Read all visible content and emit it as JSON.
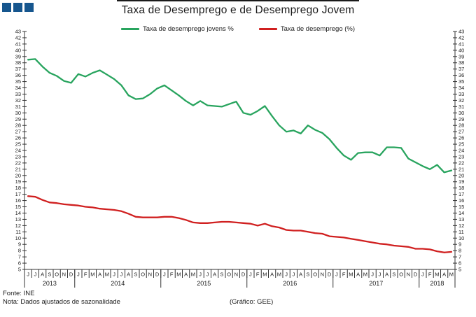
{
  "title": "Taxa de Desemprego e de Desemprego Jovem",
  "colors": {
    "logo": "#16568e",
    "axis": "#333333",
    "text": "#1a1a1a"
  },
  "footer": {
    "fonte": "Fonte: INE",
    "nota": "Nota: Dados ajustados de sazonalidade",
    "grafico": "(Gráfico: GEE)"
  },
  "chart_data": {
    "type": "line",
    "title": "Taxa de Desemprego e de Desemprego Jovem",
    "xlabel": "",
    "ylabel": "",
    "ylim": [
      5,
      43
    ],
    "y_tick_step": 1,
    "grid": false,
    "legend_position": "top",
    "months": [
      "J",
      "J",
      "A",
      "S",
      "O",
      "N",
      "D",
      "J",
      "F",
      "M",
      "A",
      "M",
      "J",
      "J",
      "A",
      "S",
      "O",
      "N",
      "D",
      "J",
      "F",
      "M",
      "A",
      "M",
      "J",
      "J",
      "A",
      "S",
      "O",
      "N",
      "D",
      "J",
      "F",
      "M",
      "A",
      "M",
      "J",
      "J",
      "A",
      "S",
      "O",
      "N",
      "D",
      "J",
      "F",
      "M",
      "A",
      "M",
      "J",
      "J",
      "A",
      "S",
      "O",
      "N",
      "D",
      "J",
      "F",
      "M",
      "A",
      "M"
    ],
    "years": [
      {
        "label": "2013",
        "months": 7
      },
      {
        "label": "2014",
        "months": 12
      },
      {
        "label": "2015",
        "months": 12
      },
      {
        "label": "2016",
        "months": 12
      },
      {
        "label": "2017",
        "months": 12
      },
      {
        "label": "2018",
        "months": 5
      }
    ],
    "series": [
      {
        "name": "Taxa de desemprego jovens %",
        "color": "#28a45e",
        "values": [
          38.5,
          38.6,
          37.4,
          36.4,
          35.9,
          35.1,
          34.8,
          36.2,
          35.8,
          36.4,
          36.8,
          36.1,
          35.4,
          34.4,
          32.8,
          32.2,
          32.3,
          33.0,
          33.9,
          34.4,
          33.6,
          32.8,
          31.9,
          31.2,
          31.9,
          31.2,
          31.1,
          31.0,
          31.4,
          31.8,
          30.0,
          29.7,
          30.3,
          31.1,
          29.5,
          28.0,
          27.0,
          27.2,
          26.7,
          28.0,
          27.3,
          26.8,
          25.8,
          24.4,
          23.2,
          22.5,
          23.6,
          23.7,
          23.7,
          23.2,
          24.5,
          24.5,
          24.4,
          22.7,
          22.1,
          21.5,
          21.0,
          21.7,
          20.5,
          20.8
        ]
      },
      {
        "name": "Taxa de desemprego (%)",
        "color": "#d02020",
        "values": [
          16.7,
          16.6,
          16.1,
          15.7,
          15.6,
          15.4,
          15.3,
          15.2,
          15.0,
          14.9,
          14.7,
          14.6,
          14.5,
          14.3,
          13.9,
          13.4,
          13.3,
          13.3,
          13.3,
          13.4,
          13.4,
          13.2,
          12.9,
          12.5,
          12.4,
          12.4,
          12.5,
          12.6,
          12.6,
          12.5,
          12.4,
          12.3,
          12.0,
          12.3,
          11.9,
          11.7,
          11.3,
          11.2,
          11.2,
          11.0,
          10.8,
          10.7,
          10.3,
          10.2,
          10.1,
          9.9,
          9.7,
          9.5,
          9.3,
          9.1,
          9.0,
          8.8,
          8.7,
          8.6,
          8.3,
          8.3,
          8.2,
          7.9,
          7.7,
          7.8
        ]
      }
    ]
  }
}
